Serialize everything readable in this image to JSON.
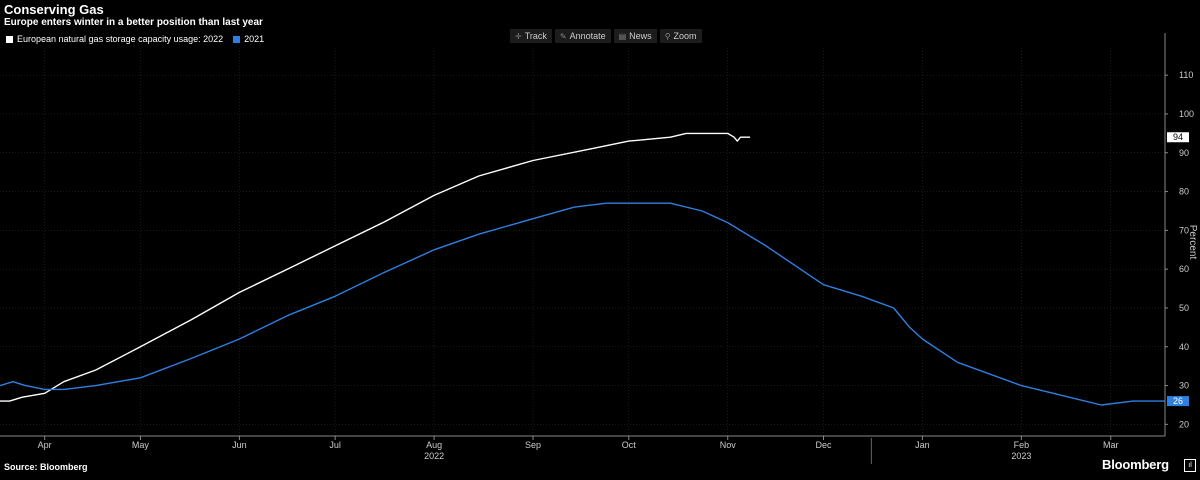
{
  "header": {
    "title": "Conserving Gas",
    "subtitle": "Europe enters winter in a better position than last year"
  },
  "toolbar": {
    "track": "Track",
    "annotate": "Annotate",
    "news": "News",
    "zoom": "Zoom"
  },
  "footer": {
    "source": "Source: Bloomberg",
    "brand": "Bloomberg"
  },
  "colors": {
    "s2022": "#ffffff",
    "s2021": "#2f7fe0",
    "grid": "#333333",
    "background": "#000000"
  },
  "chart_data": {
    "type": "line",
    "title": "Conserving Gas",
    "subtitle": "Europe enters winter in a better position than last year",
    "ylabel": "Percent",
    "ylim": [
      17,
      117
    ],
    "yticks": [
      20,
      30,
      40,
      50,
      60,
      70,
      80,
      90,
      100,
      110
    ],
    "xlim": [
      0,
      365
    ],
    "month_ticks": [
      {
        "label": "Apr",
        "x": 14
      },
      {
        "label": "May",
        "x": 44
      },
      {
        "label": "Jun",
        "x": 75
      },
      {
        "label": "Jul",
        "x": 105
      },
      {
        "label": "Aug",
        "x": 136
      },
      {
        "label": "Sep",
        "x": 167
      },
      {
        "label": "Oct",
        "x": 197
      },
      {
        "label": "Nov",
        "x": 228
      },
      {
        "label": "Dec",
        "x": 258
      },
      {
        "label": "Jan",
        "x": 289
      },
      {
        "label": "Feb",
        "x": 320
      },
      {
        "label": "Mar",
        "x": 348
      }
    ],
    "year_labels": [
      {
        "label": "2022",
        "x": 136
      },
      {
        "label": "2023",
        "x": 320
      }
    ],
    "year_break_x": 273,
    "legend_position": "top-left",
    "grid": true,
    "series": [
      {
        "name": "European natural gas storage capacity usage: 2022",
        "color": "#ffffff",
        "last_label": "94",
        "x": [
          0,
          3,
          7,
          14,
          20,
          30,
          44,
          60,
          75,
          90,
          105,
          120,
          136,
          150,
          167,
          185,
          197,
          210,
          215,
          225,
          228,
          230,
          231,
          232,
          235
        ],
        "y": [
          26,
          26,
          27,
          28,
          31,
          34,
          40,
          47,
          54,
          60,
          66,
          72,
          79,
          84,
          88,
          91,
          93,
          94,
          95,
          95,
          95,
          94,
          93,
          94,
          94
        ]
      },
      {
        "name": "2021",
        "color": "#2f7fe0",
        "last_label": "26",
        "x": [
          0,
          4,
          8,
          14,
          20,
          30,
          44,
          60,
          75,
          90,
          105,
          120,
          136,
          150,
          167,
          180,
          190,
          197,
          210,
          220,
          228,
          240,
          258,
          270,
          280,
          285,
          289,
          300,
          320,
          335,
          345,
          355,
          365
        ],
        "y": [
          30,
          31,
          30,
          29,
          29,
          30,
          32,
          37,
          42,
          48,
          53,
          59,
          65,
          69,
          73,
          76,
          77,
          77,
          77,
          75,
          72,
          66,
          56,
          53,
          50,
          45,
          42,
          36,
          30,
          27,
          25,
          26,
          26
        ]
      }
    ]
  }
}
